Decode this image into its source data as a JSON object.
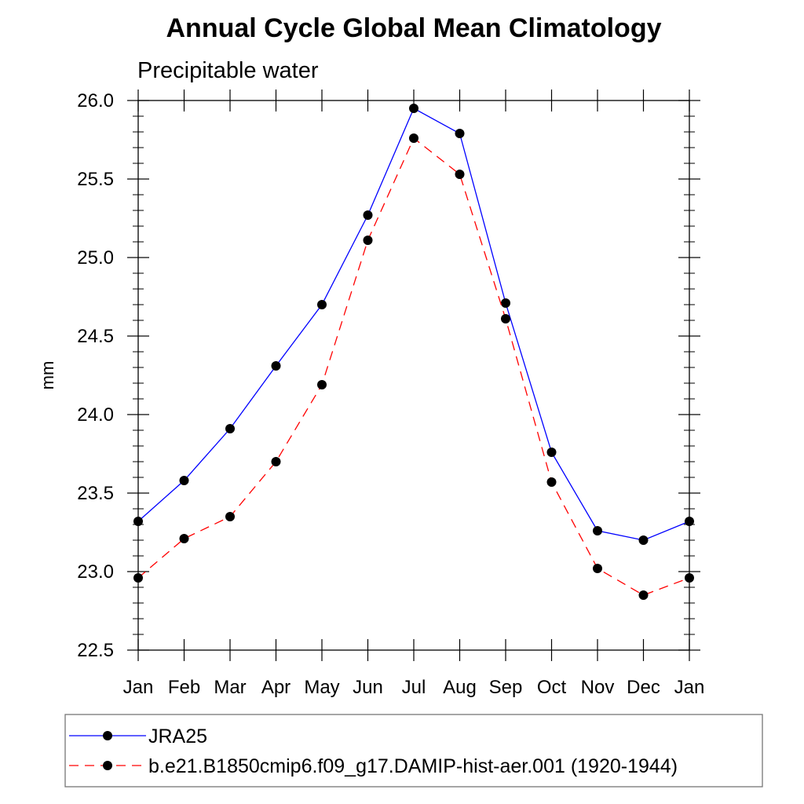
{
  "chart_data": {
    "type": "line",
    "title": "Annual Cycle Global Mean Climatology",
    "subtitle": "Precipitable water",
    "xlabel": "",
    "ylabel": "mm",
    "categories": [
      "Jan",
      "Feb",
      "Mar",
      "Apr",
      "May",
      "Jun",
      "Jul",
      "Aug",
      "Sep",
      "Oct",
      "Nov",
      "Dec",
      "Jan"
    ],
    "ylim": [
      22.5,
      26.0
    ],
    "yticks": [
      "22.5",
      "23.0",
      "23.5",
      "24.0",
      "24.5",
      "25.0",
      "25.5",
      "26.0"
    ],
    "grid": false,
    "legend_position": "bottom",
    "series": [
      {
        "name": "JRA25",
        "color": "#0000ff",
        "dash": "solid",
        "marker": "filled-circle",
        "values": [
          23.32,
          23.58,
          23.91,
          24.31,
          24.7,
          25.27,
          25.95,
          25.79,
          24.71,
          23.76,
          23.26,
          23.2,
          23.32
        ]
      },
      {
        "name": "b.e21.B1850cmip6.f09_g17.DAMIP-hist-aer.001 (1920-1944)",
        "color": "#ff0000",
        "dash": "dashed",
        "marker": "filled-circle",
        "values": [
          22.96,
          23.21,
          23.35,
          23.7,
          24.19,
          25.11,
          25.76,
          25.53,
          24.61,
          23.57,
          23.02,
          22.85,
          22.96
        ]
      }
    ]
  }
}
